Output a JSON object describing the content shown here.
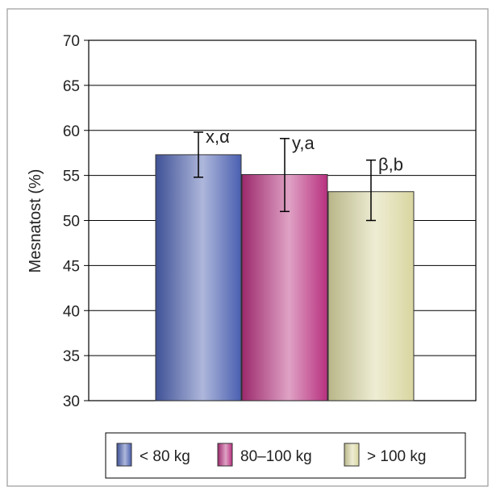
{
  "chart_data": {
    "type": "bar",
    "ylabel": "Mesnatost (%)",
    "ylim": [
      30,
      70
    ],
    "yticks": [
      "30",
      "35",
      "40",
      "45",
      "50",
      "55",
      "60",
      "65",
      "70"
    ],
    "grid": true,
    "legend_position": "bottom",
    "series": [
      {
        "name": "< 80 kg",
        "value": 57.3,
        "err_low": 54.8,
        "err_high": 59.8,
        "annotation": "x,α",
        "color": "#4a5fb0"
      },
      {
        "name": "80–100 kg",
        "value": 55.1,
        "err_low": 51.0,
        "err_high": 59.1,
        "annotation": "y,a",
        "color": "#b8307f"
      },
      {
        "name": "> 100 kg",
        "value": 53.2,
        "err_low": 50.0,
        "err_high": 56.7,
        "annotation": "β,b",
        "color": "#d9d6a0"
      }
    ]
  }
}
